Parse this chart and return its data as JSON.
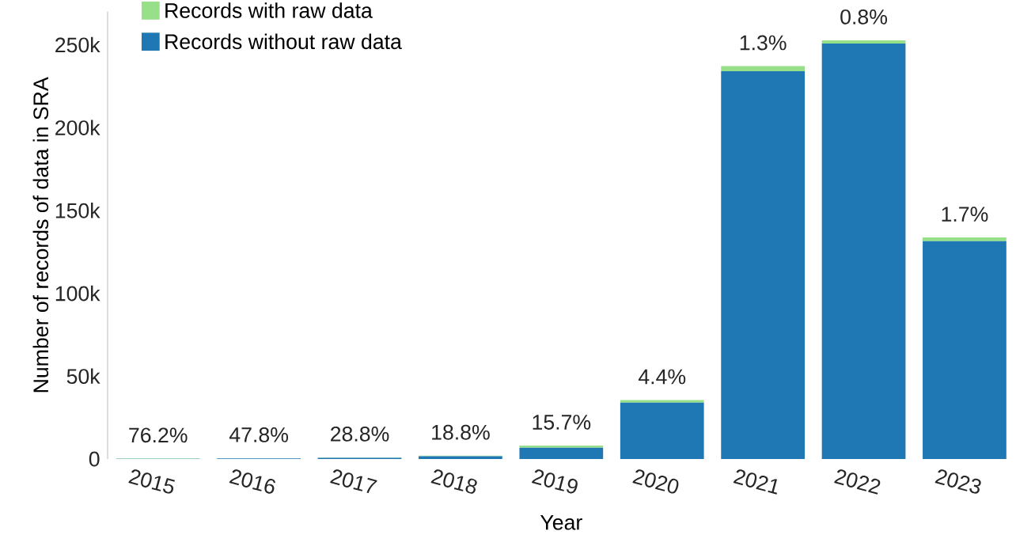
{
  "chart_data": {
    "type": "bar",
    "stacked": true,
    "xlabel": "Year",
    "ylabel": "Number of records of data in SRA",
    "categories": [
      "2015",
      "2016",
      "2017",
      "2018",
      "2019",
      "2020",
      "2021",
      "2022",
      "2023"
    ],
    "series": [
      {
        "name": "Records without raw data",
        "color": "#1f77b4",
        "values": [
          100,
          300,
          700,
          1600,
          6800,
          34000,
          234000,
          250700,
          131400
        ]
      },
      {
        "name": "Records with raw data",
        "color": "#98df8a",
        "values": [
          200,
          200,
          300,
          400,
          1300,
          1600,
          3100,
          2000,
          2300
        ]
      }
    ],
    "annotations": [
      {
        "text": "76.2%",
        "x": "2015",
        "y": 300
      },
      {
        "text": "47.8%",
        "x": "2016",
        "y": 500
      },
      {
        "text": "28.8%",
        "x": "2017",
        "y": 1000
      },
      {
        "text": "18.8%",
        "x": "2018",
        "y": 2000
      },
      {
        "text": "15.7%",
        "x": "2019",
        "y": 8100
      },
      {
        "text": "4.4%",
        "x": "2020",
        "y": 35600
      },
      {
        "text": "1.3%",
        "x": "2021",
        "y": 237100
      },
      {
        "text": "0.8%",
        "x": "2022",
        "y": 252700
      },
      {
        "text": "1.7%",
        "x": "2023",
        "y": 133700
      }
    ],
    "ylim": [
      0,
      270000
    ],
    "yticks": [
      0,
      {
        "value": 50000,
        "label": "50k"
      },
      {
        "value": 100000,
        "label": "100k"
      },
      {
        "value": 150000,
        "label": "150k"
      },
      {
        "value": 200000,
        "label": "200k"
      },
      {
        "value": 250000,
        "label": "250k"
      }
    ],
    "grid": false,
    "legend": "top left"
  }
}
